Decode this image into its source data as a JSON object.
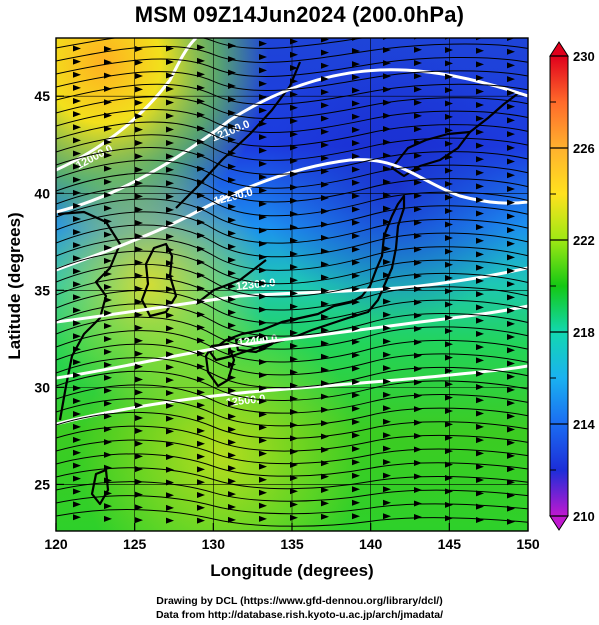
{
  "title": "MSM 09Z14Jun2024 (200.0hPa)",
  "x_axis": {
    "label": "Longitude (degrees)",
    "ticks": [
      "120",
      "125",
      "130",
      "135",
      "140",
      "145",
      "150"
    ]
  },
  "y_axis": {
    "label": "Latitude  (degrees)",
    "ticks": [
      "25",
      "30",
      "35",
      "40",
      "45"
    ]
  },
  "colorbar": {
    "ticks": [
      "230",
      "226",
      "222",
      "218",
      "214",
      "210"
    ],
    "colors": [
      "#e0001c",
      "#ff6a2a",
      "#ffb12e",
      "#ffe21e",
      "#9ee814",
      "#14c814",
      "#12d8b0",
      "#1ab2f0",
      "#1b6cf2",
      "#1c2ed8",
      "#5a12c8",
      "#c018d0"
    ]
  },
  "contours": [
    {
      "label": "12000.0"
    },
    {
      "label": "12100.0"
    },
    {
      "label": "12200.0"
    },
    {
      "label": "12300.0"
    },
    {
      "label": "12400.0"
    },
    {
      "label": "12500.0"
    }
  ],
  "credits": {
    "line1": "Drawing by DCL (https://www.gfd-dennou.org/library/dcl/)",
    "line2": "Data from http://database.rish.kyoto-u.ac.jp/arch/jmadata/"
  }
}
